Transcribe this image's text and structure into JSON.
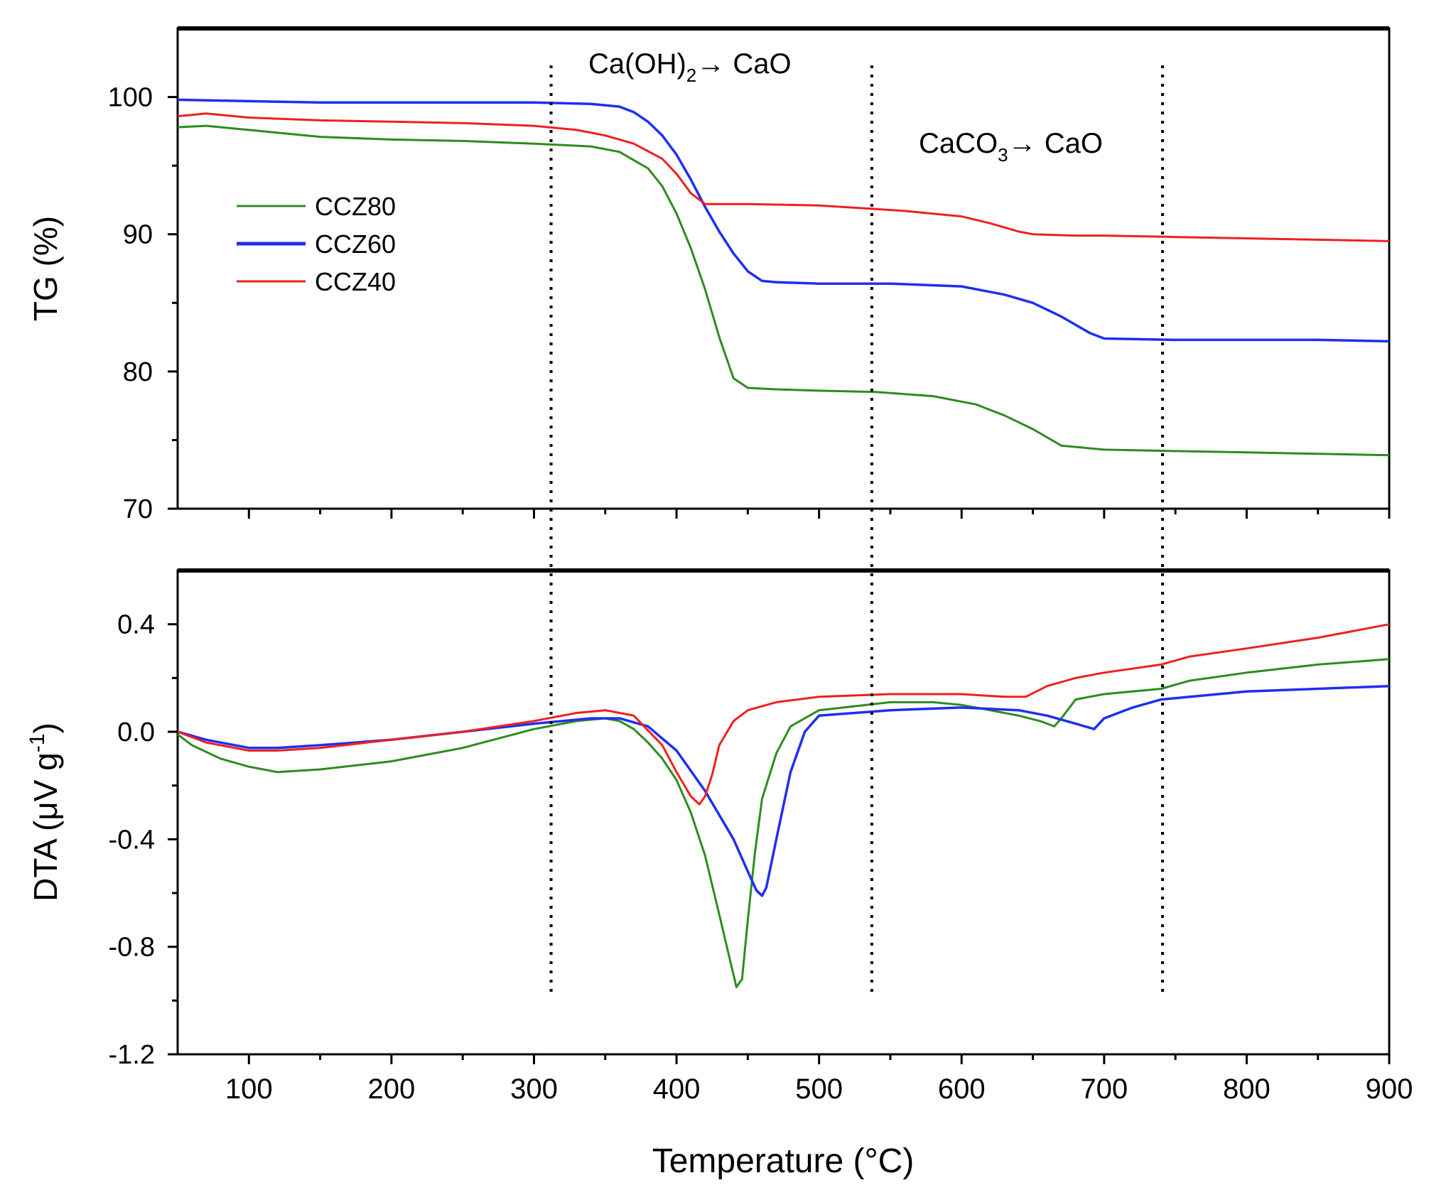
{
  "colors": {
    "CCZ80": "#2e8b1f",
    "CCZ60": "#1f2ff0",
    "CCZ40": "#f01f1f",
    "axis": "#000000"
  },
  "chart_data": [
    {
      "id": "tg",
      "type": "line",
      "ylabel": "TG (%)",
      "xlabel": "",
      "xlim": [
        50,
        900
      ],
      "ylim": [
        70,
        105
      ],
      "xticks": [
        100,
        200,
        300,
        400,
        500,
        600,
        700,
        800,
        900
      ],
      "yticks": [
        70,
        80,
        90,
        100
      ],
      "ytick_labels": [
        "70",
        "80",
        "90",
        "100"
      ],
      "legend": {
        "position": "left-middle",
        "entries": [
          "CCZ80",
          "CCZ60",
          "CCZ40"
        ]
      },
      "annotations": {
        "ca_oh": {
          "main": "Ca(OH)",
          "sub": "2",
          "tail": "→ CaO",
          "x": 420,
          "y": 101.5
        },
        "caco3": {
          "main": "CaCO",
          "sub": "3",
          "tail": "→ CaO",
          "x": 640,
          "y": 95.5
        }
      },
      "series": [
        {
          "name": "CCZ80",
          "x": [
            50,
            70,
            100,
            150,
            200,
            250,
            300,
            340,
            360,
            380,
            390,
            400,
            410,
            420,
            430,
            440,
            450,
            470,
            500,
            540,
            580,
            610,
            630,
            650,
            670,
            700,
            750,
            800,
            850,
            900
          ],
          "y": [
            97.8,
            97.9,
            97.6,
            97.1,
            96.9,
            96.8,
            96.6,
            96.4,
            96.0,
            94.8,
            93.5,
            91.5,
            89.0,
            86.0,
            82.5,
            79.5,
            78.8,
            78.7,
            78.6,
            78.5,
            78.2,
            77.6,
            76.8,
            75.8,
            74.6,
            74.3,
            74.2,
            74.1,
            74.0,
            73.9
          ]
        },
        {
          "name": "CCZ60",
          "x": [
            50,
            100,
            150,
            200,
            250,
            300,
            340,
            360,
            370,
            380,
            390,
            400,
            410,
            420,
            430,
            440,
            450,
            460,
            470,
            500,
            550,
            600,
            630,
            650,
            670,
            690,
            700,
            750,
            800,
            850,
            900
          ],
          "y": [
            99.8,
            99.7,
            99.6,
            99.6,
            99.6,
            99.6,
            99.5,
            99.3,
            98.9,
            98.2,
            97.2,
            95.8,
            94.0,
            92.0,
            90.2,
            88.6,
            87.3,
            86.6,
            86.5,
            86.4,
            86.4,
            86.2,
            85.6,
            85.0,
            84.0,
            82.8,
            82.4,
            82.3,
            82.3,
            82.3,
            82.2
          ]
        },
        {
          "name": "CCZ40",
          "x": [
            50,
            70,
            100,
            150,
            200,
            250,
            300,
            330,
            350,
            370,
            390,
            400,
            410,
            420,
            450,
            500,
            530,
            560,
            600,
            620,
            640,
            650,
            680,
            700,
            750,
            800,
            850,
            900
          ],
          "y": [
            98.6,
            98.8,
            98.5,
            98.3,
            98.2,
            98.1,
            97.9,
            97.6,
            97.2,
            96.6,
            95.5,
            94.4,
            93.0,
            92.2,
            92.2,
            92.1,
            91.9,
            91.7,
            91.3,
            90.8,
            90.2,
            90.0,
            89.9,
            89.9,
            89.8,
            89.7,
            89.6,
            89.5
          ]
        }
      ]
    },
    {
      "id": "dta",
      "type": "line",
      "ylabel": "DTA (μV g",
      "ylabel_sup": "-1",
      "ylabel_tail": ")",
      "xlabel": "Temperature (°C)",
      "xlim": [
        50,
        900
      ],
      "ylim": [
        -1.2,
        0.6
      ],
      "xticks": [
        100,
        200,
        300,
        400,
        500,
        600,
        700,
        800,
        900
      ],
      "xtick_labels": [
        "100",
        "200",
        "300",
        "400",
        "500",
        "600",
        "700",
        "800",
        "900"
      ],
      "yticks": [
        -1.2,
        -0.8,
        -0.4,
        0.0,
        0.4
      ],
      "ytick_labels": [
        "-1.2",
        "-0.8",
        "-0.4",
        "0.0",
        "0.4"
      ],
      "series": [
        {
          "name": "CCZ80",
          "x": [
            50,
            60,
            80,
            100,
            120,
            150,
            200,
            250,
            300,
            330,
            350,
            360,
            370,
            380,
            390,
            400,
            410,
            420,
            430,
            438,
            442,
            446,
            450,
            455,
            460,
            470,
            480,
            500,
            550,
            580,
            600,
            620,
            640,
            655,
            665,
            670,
            680,
            700,
            740,
            760,
            800,
            850,
            900
          ],
          "y": [
            -0.01,
            -0.05,
            -0.1,
            -0.13,
            -0.15,
            -0.14,
            -0.11,
            -0.06,
            0.01,
            0.04,
            0.05,
            0.04,
            0.01,
            -0.04,
            -0.1,
            -0.18,
            -0.3,
            -0.46,
            -0.68,
            -0.86,
            -0.95,
            -0.92,
            -0.7,
            -0.45,
            -0.25,
            -0.08,
            0.02,
            0.08,
            0.11,
            0.11,
            0.1,
            0.08,
            0.06,
            0.04,
            0.02,
            0.05,
            0.12,
            0.14,
            0.16,
            0.19,
            0.22,
            0.25,
            0.27
          ]
        },
        {
          "name": "CCZ60",
          "x": [
            50,
            70,
            100,
            120,
            150,
            200,
            250,
            300,
            340,
            360,
            380,
            400,
            420,
            440,
            450,
            456,
            460,
            463,
            470,
            480,
            490,
            500,
            550,
            600,
            640,
            660,
            680,
            693,
            700,
            720,
            740,
            800,
            850,
            900
          ],
          "y": [
            0.0,
            -0.03,
            -0.06,
            -0.06,
            -0.05,
            -0.03,
            0.0,
            0.03,
            0.05,
            0.05,
            0.02,
            -0.07,
            -0.22,
            -0.4,
            -0.52,
            -0.59,
            -0.61,
            -0.58,
            -0.4,
            -0.15,
            0.0,
            0.06,
            0.08,
            0.09,
            0.08,
            0.06,
            0.03,
            0.01,
            0.05,
            0.09,
            0.12,
            0.15,
            0.16,
            0.17
          ]
        },
        {
          "name": "CCZ40",
          "x": [
            50,
            70,
            100,
            120,
            150,
            200,
            250,
            300,
            330,
            350,
            370,
            390,
            400,
            410,
            416,
            420,
            425,
            430,
            440,
            450,
            470,
            500,
            550,
            600,
            630,
            645,
            660,
            680,
            700,
            740,
            760,
            800,
            850,
            900
          ],
          "y": [
            0.0,
            -0.04,
            -0.07,
            -0.07,
            -0.06,
            -0.03,
            0.0,
            0.04,
            0.07,
            0.08,
            0.06,
            -0.05,
            -0.15,
            -0.24,
            -0.27,
            -0.24,
            -0.16,
            -0.05,
            0.04,
            0.08,
            0.11,
            0.13,
            0.14,
            0.14,
            0.13,
            0.13,
            0.17,
            0.2,
            0.22,
            0.25,
            0.28,
            0.31,
            0.35,
            0.4
          ]
        }
      ]
    }
  ],
  "guides": {
    "style": "dotted",
    "x": [
      312,
      537,
      741
    ]
  }
}
